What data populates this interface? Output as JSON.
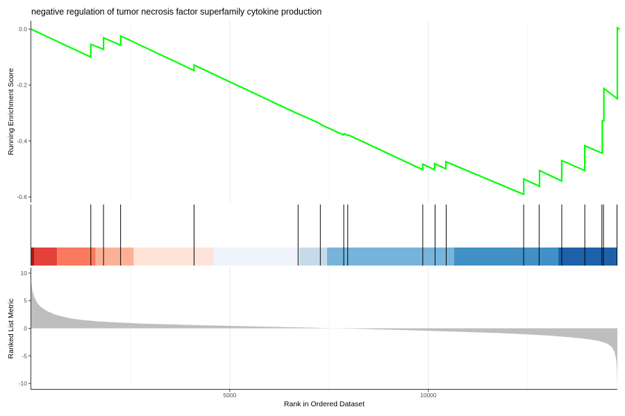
{
  "chart_data": {
    "type": "line",
    "title": "negative regulation of tumor necrosis factor superfamily cytokine production",
    "n_genes": 14760,
    "top_panel": {
      "ylabel": "Running Enrichment Score",
      "ylim": [
        -0.62,
        0.03
      ],
      "yticks": [
        0.0,
        -0.2,
        -0.4,
        -0.6
      ],
      "ytick_labels": [
        "0.0",
        "-0.2",
        "-0.4",
        "-0.6"
      ],
      "line_color": "#00ff00",
      "points": [
        [
          0,
          0.0
        ],
        [
          1500,
          -0.1
        ],
        [
          1500,
          -0.054
        ],
        [
          1820,
          -0.072
        ],
        [
          1820,
          -0.031
        ],
        [
          2250,
          -0.057
        ],
        [
          2250,
          -0.024
        ],
        [
          4100,
          -0.148
        ],
        [
          4100,
          -0.128
        ],
        [
          6700,
          -0.302
        ],
        [
          6760,
          -0.305
        ],
        [
          7260,
          -0.337
        ],
        [
          7300,
          -0.342
        ],
        [
          7860,
          -0.378
        ],
        [
          7880,
          -0.374
        ],
        [
          7960,
          -0.38
        ],
        [
          7980,
          -0.378
        ],
        [
          9860,
          -0.503
        ],
        [
          9860,
          -0.483
        ],
        [
          10160,
          -0.503
        ],
        [
          10160,
          -0.481
        ],
        [
          10440,
          -0.5
        ],
        [
          10440,
          -0.474
        ],
        [
          12400,
          -0.591
        ],
        [
          12400,
          -0.536
        ],
        [
          12800,
          -0.562
        ],
        [
          12800,
          -0.506
        ],
        [
          13360,
          -0.543
        ],
        [
          13360,
          -0.47
        ],
        [
          13940,
          -0.506
        ],
        [
          13940,
          -0.417
        ],
        [
          14380,
          -0.444
        ],
        [
          14380,
          -0.328
        ],
        [
          14420,
          -0.328
        ],
        [
          14420,
          -0.212
        ],
        [
          14760,
          -0.249
        ],
        [
          14760,
          0.005
        ],
        [
          14820,
          0.0
        ]
      ]
    },
    "hits_panel": {
      "gene_positions": [
        1500,
        1820,
        2250,
        4100,
        6720,
        7280,
        7870,
        7970,
        9860,
        10170,
        10450,
        12400,
        12790,
        13360,
        13940,
        14370,
        14410,
        14760
      ],
      "color_bands": [
        {
          "start": 0,
          "end": 70,
          "color": "#a11a1c"
        },
        {
          "start": 70,
          "end": 650,
          "color": "#e4413b"
        },
        {
          "start": 650,
          "end": 1620,
          "color": "#fb7a5f"
        },
        {
          "start": 1620,
          "end": 2580,
          "color": "#fcb197"
        },
        {
          "start": 2580,
          "end": 4590,
          "color": "#fee4d8"
        },
        {
          "start": 4590,
          "end": 6750,
          "color": "#eff3fb"
        },
        {
          "start": 6750,
          "end": 7450,
          "color": "#c6dbea"
        },
        {
          "start": 7450,
          "end": 10650,
          "color": "#77b4db"
        },
        {
          "start": 10650,
          "end": 13270,
          "color": "#4190c6"
        },
        {
          "start": 13270,
          "end": 14760,
          "color": "#1d62a9"
        }
      ]
    },
    "bottom_panel": {
      "ylabel": "Ranked List Metric",
      "ylim": [
        -11,
        11
      ],
      "yticks": [
        10,
        5,
        0,
        -5,
        -10
      ],
      "ytick_labels": [
        "10",
        "5",
        "0",
        "-5",
        "-10"
      ],
      "fill_color": "#bebebe",
      "metric_curve": [
        [
          0,
          8.3
        ],
        [
          30,
          6.8
        ],
        [
          80,
          5.6
        ],
        [
          150,
          4.6
        ],
        [
          250,
          3.8
        ],
        [
          400,
          3.1
        ],
        [
          600,
          2.5
        ],
        [
          800,
          2.1
        ],
        [
          1000,
          1.8
        ],
        [
          1300,
          1.5
        ],
        [
          1700,
          1.25
        ],
        [
          2200,
          1.05
        ],
        [
          2800,
          0.85
        ],
        [
          3500,
          0.7
        ],
        [
          4300,
          0.55
        ],
        [
          5200,
          0.4
        ],
        [
          6200,
          0.25
        ],
        [
          7000,
          0.12
        ],
        [
          7800,
          -0.02
        ],
        [
          8600,
          -0.17
        ],
        [
          9400,
          -0.33
        ],
        [
          10200,
          -0.5
        ],
        [
          11000,
          -0.68
        ],
        [
          11800,
          -0.88
        ],
        [
          12500,
          -1.1
        ],
        [
          13100,
          -1.35
        ],
        [
          13600,
          -1.65
        ],
        [
          14000,
          -1.95
        ],
        [
          14300,
          -2.3
        ],
        [
          14500,
          -2.75
        ],
        [
          14620,
          -3.4
        ],
        [
          14690,
          -4.3
        ],
        [
          14730,
          -5.6
        ],
        [
          14750,
          -7.5
        ],
        [
          14760,
          -10.8
        ]
      ]
    },
    "xlabel": "Rank in Ordered Dataset",
    "xticks": [
      5000,
      10000
    ],
    "xtick_labels": [
      "5000",
      "10000"
    ],
    "grid": true
  }
}
